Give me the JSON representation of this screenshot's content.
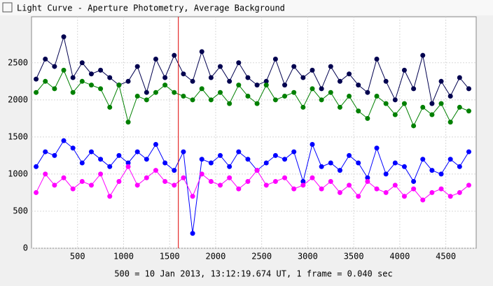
{
  "chart_data": {
    "type": "line",
    "title": "Light Curve - Aperture Photometry, Average Background",
    "xlabel": "500 = 10 Jan 2013, 13:12:19.674 UT, 1 frame = 0.040 sec",
    "x": [
      50,
      150,
      250,
      350,
      450,
      550,
      650,
      750,
      850,
      950,
      1050,
      1150,
      1250,
      1350,
      1450,
      1550,
      1650,
      1750,
      1850,
      1950,
      2050,
      2150,
      2250,
      2350,
      2450,
      2550,
      2650,
      2750,
      2850,
      2950,
      3050,
      3150,
      3250,
      3350,
      3450,
      3550,
      3650,
      3750,
      3850,
      3950,
      4050,
      4150,
      4250,
      4350,
      4450,
      4550,
      4650,
      4750
    ],
    "series": [
      {
        "color": "#00004f",
        "values": [
          2280,
          2550,
          2450,
          2850,
          2300,
          2500,
          2350,
          2400,
          2300,
          2200,
          2250,
          2450,
          2100,
          2550,
          2300,
          2600,
          2350,
          2250,
          2650,
          2300,
          2450,
          2250,
          2500,
          2300,
          2200,
          2250,
          2550,
          2200,
          2450,
          2300,
          2400,
          2150,
          2450,
          2250,
          2350,
          2200,
          2100,
          2550,
          2250,
          2000,
          2400,
          2150,
          2600,
          1950,
          2250,
          2050,
          2300,
          2150
        ]
      },
      {
        "color": "#008000",
        "values": [
          2100,
          2250,
          2150,
          2400,
          2100,
          2250,
          2200,
          2150,
          1900,
          2200,
          1700,
          2050,
          2000,
          2100,
          2200,
          2100,
          2050,
          2000,
          2150,
          2000,
          2100,
          1950,
          2200,
          2050,
          1950,
          2200,
          2000,
          2050,
          2100,
          1900,
          2150,
          2000,
          2100,
          1900,
          2050,
          1850,
          1750,
          2050,
          1950,
          1800,
          1950,
          1650,
          1900,
          1800,
          1950,
          1700,
          1900,
          1850
        ]
      },
      {
        "color": "#0000ff",
        "values": [
          1100,
          1300,
          1250,
          1450,
          1350,
          1150,
          1300,
          1200,
          1100,
          1250,
          1150,
          1300,
          1200,
          1400,
          1150,
          1050,
          1300,
          200,
          1200,
          1150,
          1250,
          1100,
          1300,
          1200,
          1050,
          1150,
          1250,
          1200,
          1300,
          900,
          1400,
          1100,
          1150,
          1050,
          1250,
          1150,
          950,
          1350,
          1000,
          1150,
          1100,
          900,
          1200,
          1050,
          1000,
          1200,
          1100,
          1300
        ]
      },
      {
        "color": "#ff00ff",
        "values": [
          750,
          1000,
          850,
          950,
          800,
          900,
          850,
          1000,
          700,
          900,
          1100,
          850,
          950,
          1050,
          900,
          850,
          950,
          700,
          1000,
          900,
          850,
          950,
          800,
          900,
          1050,
          850,
          900,
          950,
          800,
          850,
          950,
          800,
          900,
          750,
          850,
          700,
          900,
          800,
          750,
          850,
          700,
          800,
          650,
          750,
          800,
          700,
          750,
          850
        ]
      }
    ],
    "cursor": 1595,
    "cursor_color": "#e00000",
    "xlim": [
      0,
      4830
    ],
    "xticks": [
      500,
      1000,
      1500,
      2000,
      2500,
      3000,
      3500,
      4000,
      4500
    ],
    "ylim": [
      0,
      3120
    ],
    "yticks": [
      0,
      500,
      1000,
      1500,
      2000,
      2500
    ],
    "grid": true
  }
}
